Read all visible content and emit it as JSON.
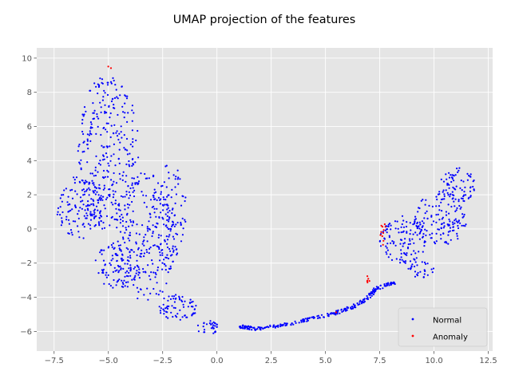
{
  "chart_data": {
    "type": "scatter",
    "title": "UMAP projection of the features",
    "xlabel": "",
    "ylabel": "",
    "xlim": [
      -8.3,
      12.7
    ],
    "ylim": [
      -7.15,
      10.6
    ],
    "xticks": [
      -7.5,
      -5.0,
      -2.5,
      0.0,
      2.5,
      5.0,
      7.5,
      10.0,
      12.5
    ],
    "xtick_labels": [
      "−7.5",
      "−5.0",
      "−2.5",
      "0.0",
      "2.5",
      "5.0",
      "7.5",
      "10.0",
      "12.5"
    ],
    "yticks": [
      -6,
      -4,
      -2,
      0,
      2,
      4,
      6,
      8,
      10
    ],
    "ytick_labels": [
      "−6",
      "−4",
      "−2",
      "0",
      "2",
      "4",
      "6",
      "8",
      "10"
    ],
    "grid": true,
    "legend_position": "lower-right",
    "colors": {
      "background": "#e5e5e5",
      "grid": "#ffffff",
      "normal": "#0000ff",
      "anomaly": "#ff0000"
    },
    "series": [
      {
        "name": "Normal",
        "color": "#0000ff",
        "clusters": [
          {
            "shape": "ellipse",
            "cx": -5.0,
            "cy": 4.5,
            "rx": 1.4,
            "ry": 4.6,
            "n": 320
          },
          {
            "shape": "ellipse",
            "cx": -6.3,
            "cy": 1.3,
            "rx": 1.1,
            "ry": 1.9,
            "n": 120
          },
          {
            "shape": "ellipse",
            "cx": -3.3,
            "cy": -0.5,
            "rx": 1.5,
            "ry": 3.8,
            "n": 260
          },
          {
            "shape": "ellipse",
            "cx": -4.6,
            "cy": -2.2,
            "rx": 1.1,
            "ry": 1.4,
            "n": 90
          },
          {
            "shape": "ellipse",
            "cx": -2.2,
            "cy": 1.0,
            "rx": 0.8,
            "ry": 2.8,
            "n": 90
          },
          {
            "shape": "ellipse",
            "cx": -1.8,
            "cy": -4.6,
            "rx": 0.9,
            "ry": 0.8,
            "n": 70
          },
          {
            "shape": "ellipse",
            "cx": -0.4,
            "cy": -5.8,
            "rx": 0.5,
            "ry": 0.45,
            "n": 30
          },
          {
            "shape": "ellipse",
            "cx": 8.6,
            "cy": -0.6,
            "rx": 1.1,
            "ry": 1.4,
            "n": 120
          },
          {
            "shape": "ellipse",
            "cx": 10.3,
            "cy": 0.6,
            "rx": 1.2,
            "ry": 1.6,
            "n": 140
          },
          {
            "shape": "ellipse",
            "cx": 11.1,
            "cy": 2.6,
            "rx": 0.8,
            "ry": 1.1,
            "n": 70
          },
          {
            "shape": "ellipse",
            "cx": 9.4,
            "cy": -2.4,
            "rx": 0.7,
            "ry": 0.5,
            "n": 30
          },
          {
            "shape": "path",
            "spread": 0.09,
            "n": 260,
            "points": [
              [
                1.0,
                -5.7
              ],
              [
                1.8,
                -5.85
              ],
              [
                3.0,
                -5.65
              ],
              [
                4.2,
                -5.3
              ],
              [
                5.4,
                -4.95
              ],
              [
                6.3,
                -4.55
              ],
              [
                7.0,
                -4.0
              ],
              [
                7.3,
                -3.5
              ],
              [
                8.2,
                -3.1
              ]
            ]
          }
        ]
      },
      {
        "name": "Anomaly",
        "color": "#ff0000",
        "clusters": [
          {
            "shape": "ellipse",
            "cx": 7.6,
            "cy": -0.35,
            "rx": 0.1,
            "ry": 0.7,
            "n": 9
          },
          {
            "shape": "ellipse",
            "cx": 6.95,
            "cy": -3.0,
            "rx": 0.08,
            "ry": 0.3,
            "n": 6
          },
          {
            "shape": "ellipse",
            "cx": 7.75,
            "cy": 0.2,
            "rx": 0.05,
            "ry": 0.15,
            "n": 2
          },
          {
            "shape": "ellipse",
            "cx": 5.5,
            "cy": -4.9,
            "rx": 0.05,
            "ry": 0.05,
            "n": 1
          },
          {
            "shape": "ellipse",
            "cx": -4.95,
            "cy": 9.45,
            "rx": 0.1,
            "ry": 0.1,
            "n": 2
          }
        ]
      }
    ],
    "legend": [
      {
        "label": "Normal",
        "color": "#0000ff"
      },
      {
        "label": "Anomaly",
        "color": "#ff0000"
      }
    ]
  }
}
